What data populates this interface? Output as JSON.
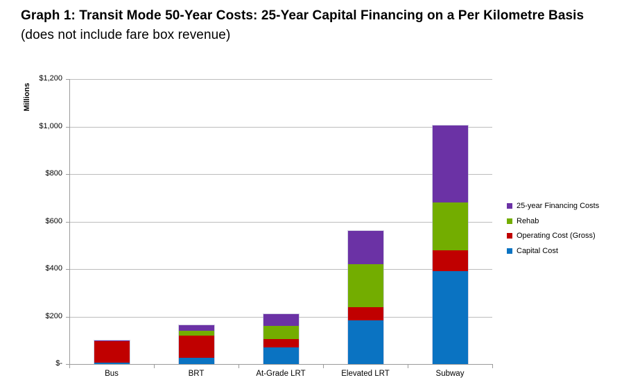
{
  "title": {
    "bold": "Graph 1: Transit Mode 50-Year Costs: 25-Year Capital Financing on a Per Kilometre Basis",
    "suffix": "(does not include fare box revenue)"
  },
  "chart_data": {
    "type": "bar",
    "stacked": true,
    "title": "Graph 1: Transit Mode 50-Year Costs: 25-Year Capital Financing on a Per Kilometre Basis (does not include fare box revenue)",
    "ylabel": "Millions",
    "ylim": [
      0,
      1200
    ],
    "y_tick_step": 200,
    "y_tick_labels": [
      "$-",
      "$200",
      "$400",
      "$600",
      "$800",
      "$1,000",
      "$1,200"
    ],
    "grid": true,
    "legend_position": "right",
    "categories": [
      "Bus",
      "BRT",
      "At-Grade LRT",
      "Elevated LRT",
      "Subway"
    ],
    "series": [
      {
        "name": "Capital Cost",
        "color": "#0a73c2",
        "values": [
          5,
          25,
          70,
          185,
          390
        ]
      },
      {
        "name": "Operating Cost (Gross)",
        "color": "#c00000",
        "values": [
          92,
          95,
          35,
          55,
          90
        ]
      },
      {
        "name": "Rehab",
        "color": "#73ad00",
        "values": [
          0,
          20,
          55,
          180,
          200
        ]
      },
      {
        "name": "25-year Financing Costs",
        "color": "#6b32a5",
        "values": [
          3,
          25,
          50,
          140,
          325
        ]
      }
    ],
    "legend_order": [
      "25-year Financing Costs",
      "Rehab",
      "Operating Cost (Gross)",
      "Capital Cost"
    ]
  },
  "colors": {
    "gridline": "#bcbcbc",
    "axis": "#9a9a9a",
    "background": "#ffffff"
  }
}
